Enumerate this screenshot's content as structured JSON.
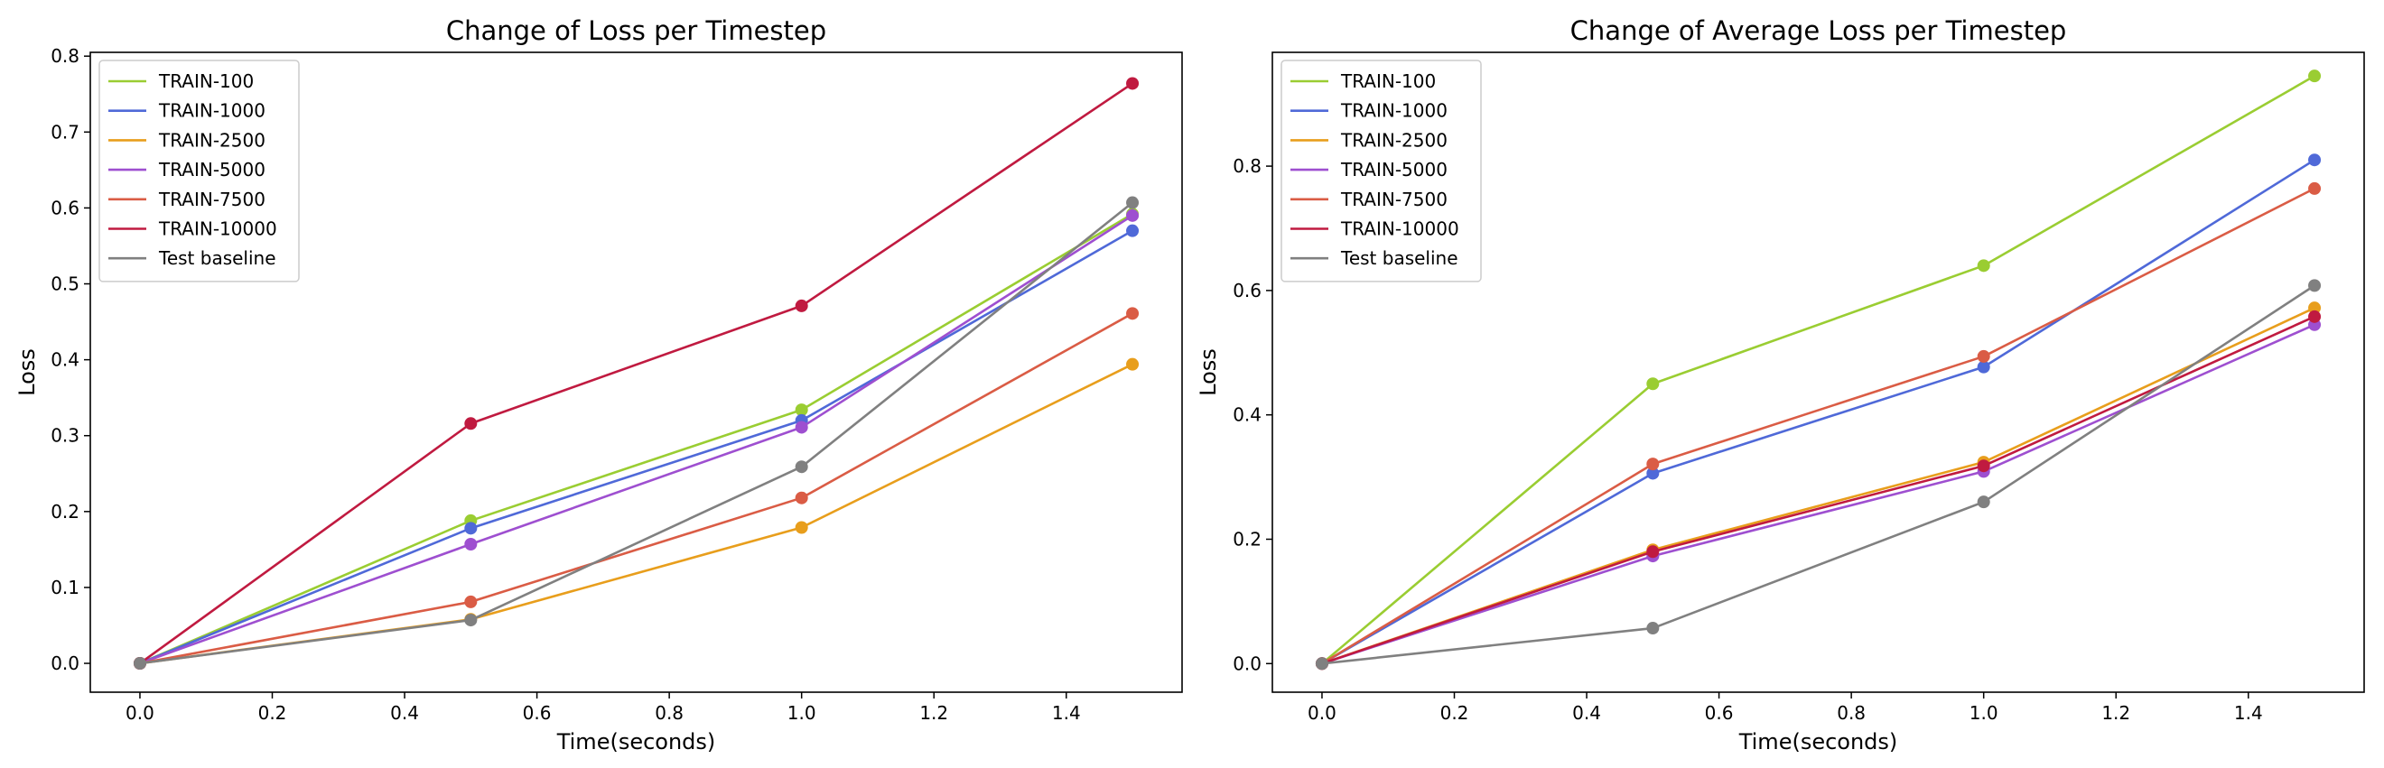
{
  "chart_data": [
    {
      "type": "line",
      "title": "Change of Loss per Timestep",
      "xlabel": "Time(seconds)",
      "ylabel": "Loss",
      "x": [
        0.0,
        0.5,
        1.0,
        1.5
      ],
      "xlim": [
        -0.075,
        1.575
      ],
      "ylim": [
        -0.038,
        0.805
      ],
      "xticks": [
        "0.0",
        "0.2",
        "0.4",
        "0.6",
        "0.8",
        "1.0",
        "1.2",
        "1.4"
      ],
      "yticks": [
        "0.0",
        "0.1",
        "0.2",
        "0.3",
        "0.4",
        "0.5",
        "0.6",
        "0.7",
        "0.8"
      ],
      "grid": false,
      "legend": "upper-left",
      "series": [
        {
          "name": "TRAIN-100",
          "color": "#9ACD32",
          "values": [
            0.0,
            0.188,
            0.334,
            0.592
          ]
        },
        {
          "name": "TRAIN-1000",
          "color": "#4F69D8",
          "values": [
            0.0,
            0.178,
            0.32,
            0.57
          ]
        },
        {
          "name": "TRAIN-2500",
          "color": "#E89E1C",
          "values": [
            0.0,
            0.058,
            0.179,
            0.394
          ]
        },
        {
          "name": "TRAIN-5000",
          "color": "#9E4FD0",
          "values": [
            0.0,
            0.157,
            0.311,
            0.59
          ]
        },
        {
          "name": "TRAIN-7500",
          "color": "#DA5C45",
          "values": [
            0.0,
            0.081,
            0.218,
            0.461
          ]
        },
        {
          "name": "TRAIN-10000",
          "color": "#C01A40",
          "values": [
            0.0,
            0.316,
            0.471,
            0.764
          ]
        },
        {
          "name": "Test baseline",
          "color": "#808080",
          "values": [
            0.0,
            0.057,
            0.259,
            0.607
          ]
        }
      ]
    },
    {
      "type": "line",
      "title": "Change of Average Loss per Timestep",
      "xlabel": "Time(seconds)",
      "ylabel": "Loss",
      "x": [
        0.0,
        0.5,
        1.0,
        1.5
      ],
      "xlim": [
        -0.075,
        1.575
      ],
      "ylim": [
        -0.046,
        0.983
      ],
      "xticks": [
        "0.0",
        "0.2",
        "0.4",
        "0.6",
        "0.8",
        "1.0",
        "1.2",
        "1.4"
      ],
      "yticks": [
        "0.0",
        "0.2",
        "0.4",
        "0.6",
        "0.8"
      ],
      "grid": false,
      "legend": "upper-left",
      "series": [
        {
          "name": "TRAIN-100",
          "color": "#9ACD32",
          "values": [
            0.0,
            0.45,
            0.64,
            0.945
          ]
        },
        {
          "name": "TRAIN-1000",
          "color": "#4F69D8",
          "values": [
            0.0,
            0.306,
            0.477,
            0.81
          ]
        },
        {
          "name": "TRAIN-2500",
          "color": "#E89E1C",
          "values": [
            0.0,
            0.183,
            0.324,
            0.572
          ]
        },
        {
          "name": "TRAIN-5000",
          "color": "#9E4FD0",
          "values": [
            0.0,
            0.173,
            0.309,
            0.545
          ]
        },
        {
          "name": "TRAIN-7500",
          "color": "#DA5C45",
          "values": [
            0.0,
            0.321,
            0.494,
            0.764
          ]
        },
        {
          "name": "TRAIN-10000",
          "color": "#C01A40",
          "values": [
            0.0,
            0.18,
            0.318,
            0.558
          ]
        },
        {
          "name": "Test baseline",
          "color": "#808080",
          "values": [
            0.0,
            0.057,
            0.26,
            0.608
          ]
        }
      ]
    }
  ]
}
